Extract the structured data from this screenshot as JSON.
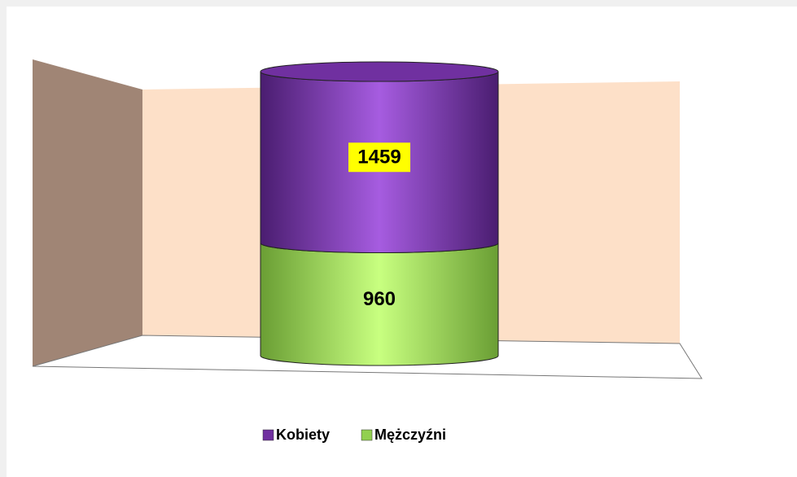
{
  "chart_data": {
    "type": "stacked_cylinder",
    "categories": [
      null
    ],
    "series": [
      {
        "name": "Kobiety",
        "color": "#7030a0",
        "values": [
          1459
        ],
        "label_background": "#ffff00"
      },
      {
        "name": "Mężczyźni",
        "color": "#92d050",
        "values": [
          960
        ]
      }
    ],
    "legend": "bottom"
  }
}
